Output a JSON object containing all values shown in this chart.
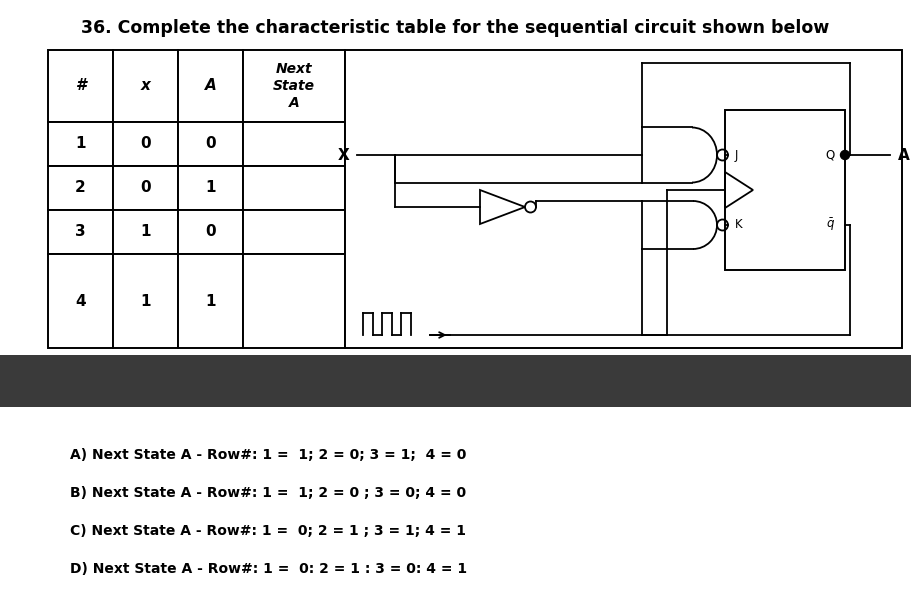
{
  "title": "36. Complete the characteristic table for the sequential circuit shown below",
  "title_fontsize": 12.5,
  "title_fontweight": "bold",
  "background_color": "#ffffff",
  "dark_band_color": "#3a3a3a",
  "table_headers": [
    "#",
    "x",
    "A",
    "Next\nState\nA"
  ],
  "table_rows": [
    [
      "1",
      "0",
      "0",
      ""
    ],
    [
      "2",
      "0",
      "1",
      ""
    ],
    [
      "3",
      "1",
      "0",
      ""
    ],
    [
      "4",
      "1",
      "1",
      ""
    ]
  ],
  "answer_lines": [
    "A) Next State A - Row#: 1 =  1; 2 = 0; 3 = 1;  4 = 0",
    "B) Next State A - Row#: 1 =  1; 2 = 0 ; 3 = 0; 4 = 0",
    "C) Next State A - Row#: 1 =  0; 2 = 1 ; 3 = 1; 4 = 1",
    "D) Next State A - Row#: 1 =  0: 2 = 1 : 3 = 0: 4 = 1"
  ]
}
